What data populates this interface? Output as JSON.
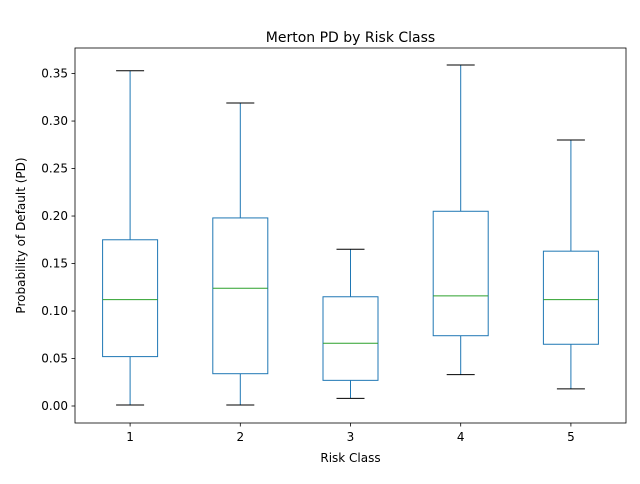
{
  "colors": {
    "box": "#1f77b4",
    "median": "#2ca02c",
    "whisker_cap": "#000000",
    "axes": "#000000",
    "background": "#ffffff"
  },
  "chart_data": {
    "type": "box",
    "title": "Merton PD by Risk Class",
    "xlabel": "Risk Class",
    "ylabel": "Probability of Default (PD)",
    "categories": [
      "1",
      "2",
      "3",
      "4",
      "5"
    ],
    "boxes": [
      {
        "category": "1",
        "whisker_low": 0.001,
        "q1": 0.052,
        "median": 0.112,
        "q3": 0.175,
        "whisker_high": 0.353
      },
      {
        "category": "2",
        "whisker_low": 0.001,
        "q1": 0.034,
        "median": 0.124,
        "q3": 0.198,
        "whisker_high": 0.319
      },
      {
        "category": "3",
        "whisker_low": 0.008,
        "q1": 0.027,
        "median": 0.066,
        "q3": 0.115,
        "whisker_high": 0.165
      },
      {
        "category": "4",
        "whisker_low": 0.033,
        "q1": 0.074,
        "median": 0.116,
        "q3": 0.205,
        "whisker_high": 0.359
      },
      {
        "category": "5",
        "whisker_low": 0.018,
        "q1": 0.065,
        "median": 0.112,
        "q3": 0.163,
        "whisker_high": 0.28
      }
    ],
    "yticks": [
      0.0,
      0.05,
      0.1,
      0.15,
      0.2,
      0.25,
      0.3,
      0.35
    ],
    "ytick_labels": [
      "0.00",
      "0.05",
      "0.10",
      "0.15",
      "0.20",
      "0.25",
      "0.30",
      "0.35"
    ],
    "ylim": [
      -0.0179,
      0.3769
    ],
    "grid": false,
    "legend": "none"
  }
}
